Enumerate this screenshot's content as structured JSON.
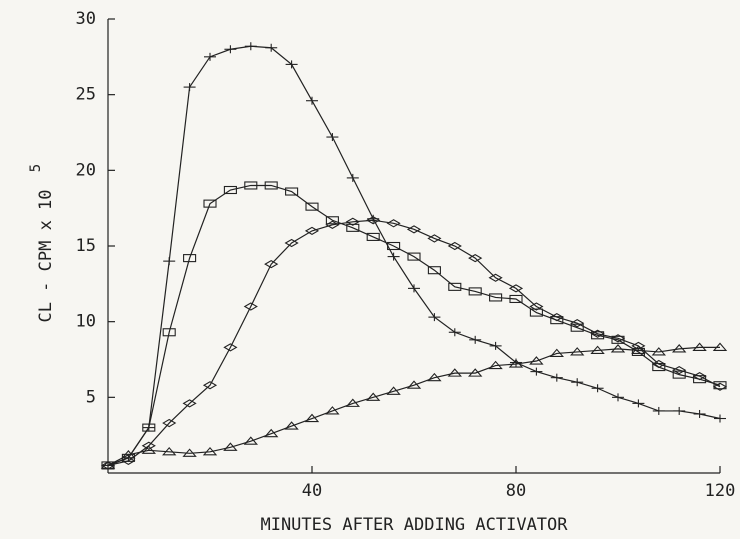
{
  "chart_data": {
    "type": "line",
    "xlabel": "MINUTES AFTER ADDING ACTIVATOR",
    "ylabel": "CL - CPM x 10",
    "ylabel_exponent": "5",
    "x": [
      0,
      4,
      8,
      12,
      16,
      20,
      24,
      28,
      32,
      36,
      40,
      44,
      48,
      52,
      56,
      60,
      64,
      68,
      72,
      76,
      80,
      84,
      88,
      92,
      96,
      100,
      104,
      108,
      112,
      116,
      120
    ],
    "xlim": [
      0,
      120
    ],
    "xticks": [
      40,
      80,
      120
    ],
    "ylim": [
      0,
      30
    ],
    "yticks": [
      5,
      10,
      15,
      20,
      25,
      30
    ],
    "series": [
      {
        "marker": "plus",
        "color": "#222222",
        "values": [
          0.5,
          1,
          3,
          14,
          25.5,
          27.5,
          28,
          28.2,
          28.1,
          27,
          24.6,
          22.2,
          19.5,
          16.8,
          14.3,
          12.2,
          10.3,
          9.3,
          8.8,
          8.4,
          7.3,
          6.7,
          6.3,
          6,
          5.6,
          5,
          4.6,
          4.1,
          4.1,
          3.9,
          3.6
        ]
      },
      {
        "marker": "square",
        "color": "#222222",
        "values": [
          0.5,
          1,
          3,
          9.3,
          14.2,
          17.8,
          18.7,
          19,
          19,
          18.6,
          17.6,
          16.7,
          16.2,
          15.6,
          15,
          14.3,
          13.4,
          12.3,
          12,
          11.6,
          11.5,
          10.6,
          10.1,
          9.6,
          9.1,
          8.8,
          8,
          7,
          6.5,
          6.2,
          5.8
        ]
      },
      {
        "marker": "diamond",
        "color": "#222222",
        "values": [
          0.5,
          0.8,
          1.8,
          3.3,
          4.6,
          5.8,
          8.3,
          11,
          13.8,
          15.2,
          16,
          16.4,
          16.6,
          16.7,
          16.5,
          16.1,
          15.5,
          15,
          14.2,
          12.9,
          12.2,
          11,
          10.3,
          9.9,
          9.2,
          8.9,
          8.4,
          7.2,
          6.8,
          6.4,
          5.7
        ]
      },
      {
        "marker": "triangle",
        "color": "#222222",
        "values": [
          0.5,
          1.2,
          1.5,
          1.4,
          1.3,
          1.4,
          1.7,
          2.1,
          2.6,
          3.1,
          3.6,
          4.1,
          4.6,
          5,
          5.4,
          5.8,
          6.3,
          6.6,
          6.6,
          7.1,
          7.2,
          7.4,
          7.9,
          8,
          8.1,
          8.2,
          8.1,
          8,
          8.2,
          8.3,
          8.3
        ]
      }
    ]
  }
}
